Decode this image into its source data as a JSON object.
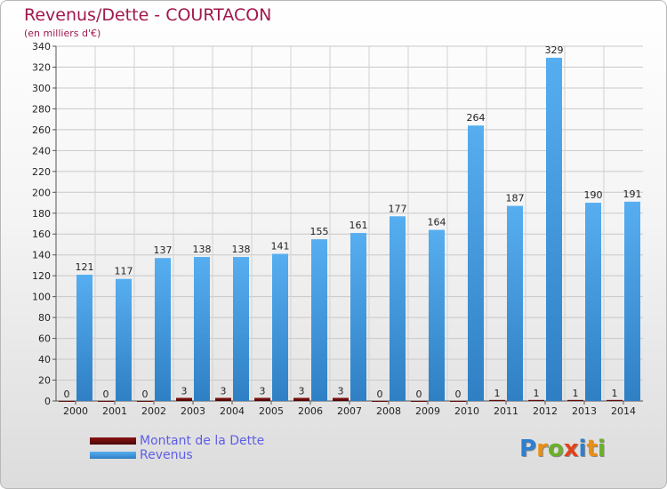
{
  "header": {
    "title": "Revenus/Dette - COURTACON",
    "subtitle": "(en milliers d'€)"
  },
  "logo": {
    "text": "Proxiti",
    "letters": [
      {
        "ch": "P",
        "color": "#2f7fd0"
      },
      {
        "ch": "r",
        "color": "#e88f14"
      },
      {
        "ch": "o",
        "color": "#6caf2a"
      },
      {
        "ch": "x",
        "color": "#e2421b"
      },
      {
        "ch": "i",
        "color": "#2f7fd0"
      },
      {
        "ch": "t",
        "color": "#e88f14"
      },
      {
        "ch": "i",
        "color": "#6caf2a"
      }
    ]
  },
  "chart_data": {
    "type": "bar",
    "title": "Revenus/Dette - COURTACON",
    "subtitle": "(en milliers d'€)",
    "categories": [
      "2000",
      "2001",
      "2002",
      "2003",
      "2004",
      "2005",
      "2006",
      "2007",
      "2008",
      "2009",
      "2010",
      "2011",
      "2012",
      "2013",
      "2014"
    ],
    "series": [
      {
        "name": "Montant de la Dette",
        "color": "#6b0a0a",
        "values": [
          0,
          0,
          0,
          3,
          3,
          3,
          3,
          3,
          0,
          0,
          0,
          1,
          1,
          1,
          1
        ]
      },
      {
        "name": "Revenus",
        "color": "#4aa3e8",
        "values": [
          121,
          117,
          137,
          138,
          138,
          141,
          155,
          161,
          177,
          164,
          264,
          187,
          329,
          190,
          191
        ]
      }
    ],
    "ylim": [
      0,
      340
    ],
    "ytick_step": 20,
    "grid": true,
    "legend": "bottom-left"
  }
}
